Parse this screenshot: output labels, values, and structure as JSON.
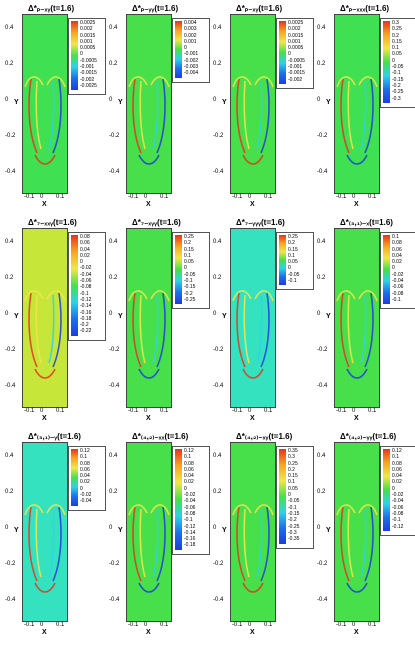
{
  "chart_data": [
    {
      "type": "heatmap",
      "title": "Δ*ₚ₋ₓᵧ(t=1.6)",
      "xlabel": "X",
      "ylabel": "Y",
      "xticks": [
        "-0.1",
        "0",
        "0.1"
      ],
      "yticks": [
        "0.4",
        "0.2",
        "0",
        "-0.2",
        "-0.4"
      ],
      "background": "#3fe052",
      "levels": [
        "0.0025",
        "0.002",
        "0.0015",
        "0.001",
        "0.0005",
        "0",
        "-0.0005",
        "-0.001",
        "-0.0015",
        "-0.002",
        "-0.0025"
      ]
    },
    {
      "type": "heatmap",
      "title": "Δ*ₚ₋ᵧᵧ(t=1.6)",
      "xlabel": "X",
      "ylabel": "Y",
      "xticks": [
        "-0.1",
        "0",
        "0.1"
      ],
      "yticks": [
        "0.4",
        "0.2",
        "0",
        "-0.2",
        "-0.4"
      ],
      "background": "#47e04a",
      "levels": [
        "0.004",
        "0.003",
        "0.002",
        "0.001",
        "0",
        "-0.001",
        "-0.002",
        "-0.003",
        "-0.004"
      ]
    },
    {
      "type": "heatmap",
      "title": "Δ*ₚ₋ₓᵧ(t=1.6)",
      "xlabel": "X",
      "ylabel": "Y",
      "xticks": [
        "-0.1",
        "0",
        "0.1"
      ],
      "yticks": [
        "0.4",
        "0.2",
        "0",
        "-0.2",
        "-0.4"
      ],
      "background": "#47e04a",
      "levels": [
        "0.0025",
        "0.002",
        "0.0015",
        "0.001",
        "0.0005",
        "0",
        "-0.0005",
        "-0.001",
        "-0.0015",
        "-0.002"
      ]
    },
    {
      "type": "heatmap",
      "title": "Δ*ₚ₋ₓₓₓ(t=1.6)",
      "xlabel": "X",
      "ylabel": "Y",
      "xticks": [
        "-0.1",
        "0",
        "0.1"
      ],
      "yticks": [
        "0.4",
        "0.2",
        "0",
        "-0.2",
        "-0.4"
      ],
      "background": "#3fe052",
      "levels": [
        "0.3",
        "0.25",
        "0.2",
        "0.15",
        "0.1",
        "0.05",
        "0",
        "-0.05",
        "-0.1",
        "-0.15",
        "-0.2",
        "-0.25",
        "-0.3"
      ]
    },
    {
      "type": "heatmap",
      "title": "Δ*₇₋ₓₓᵧ(t=1.6)",
      "xlabel": "X",
      "ylabel": "Y",
      "xticks": [
        "-0.1",
        "0",
        "0.1"
      ],
      "yticks": [
        "0.4",
        "0.2",
        "0",
        "-0.2",
        "-0.4"
      ],
      "background": "#c6e63a",
      "levels": [
        "0.08",
        "0.06",
        "0.04",
        "0.02",
        "0",
        "-0.02",
        "-0.04",
        "-0.06",
        "-0.08",
        "-0.1",
        "-0.12",
        "-0.14",
        "-0.16",
        "-0.18",
        "-0.2",
        "-0.22"
      ]
    },
    {
      "type": "heatmap",
      "title": "Δ*₇₋ₓᵧᵧ(t=1.6)",
      "xlabel": "X",
      "ylabel": "Y",
      "xticks": [
        "-0.1",
        "0",
        "0.1"
      ],
      "yticks": [
        "0.4",
        "0.2",
        "0",
        "-0.2",
        "-0.4"
      ],
      "background": "#47e04a",
      "levels": [
        "0.25",
        "0.2",
        "0.15",
        "0.1",
        "0.05",
        "0",
        "-0.05",
        "-0.1",
        "-0.15",
        "-0.2",
        "-0.25"
      ]
    },
    {
      "type": "heatmap",
      "title": "Δ*₇₋ᵧᵧᵧ(t=1.6)",
      "xlabel": "X",
      "ylabel": "Y",
      "xticks": [
        "-0.1",
        "0",
        "0.1"
      ],
      "yticks": [
        "0.4",
        "0.2",
        "0",
        "-0.2",
        "-0.4"
      ],
      "background": "#35e2c0",
      "levels": [
        "0.25",
        "0.2",
        "0.15",
        "0.1",
        "0.05",
        "0",
        "-0.05",
        "-0.1"
      ]
    },
    {
      "type": "heatmap",
      "title": "Δ*₍₃,₁₎₋ₓ(t=1.6)",
      "xlabel": "X",
      "ylabel": "Y",
      "xticks": [
        "-0.1",
        "0",
        "0.1"
      ],
      "yticks": [
        "0.4",
        "0.2",
        "0",
        "-0.2",
        "-0.4"
      ],
      "background": "#47e04a",
      "levels": [
        "0.1",
        "0.08",
        "0.06",
        "0.04",
        "0.02",
        "0",
        "-0.02",
        "-0.04",
        "-0.06",
        "-0.08",
        "-0.1"
      ]
    },
    {
      "type": "heatmap",
      "title": "Δ*₍₃,₁₎₋ᵧ(t=1.6)",
      "xlabel": "X",
      "ylabel": "Y",
      "xticks": [
        "-0.1",
        "0",
        "0.1"
      ],
      "yticks": [
        "0.4",
        "0.2",
        "0",
        "-0.2",
        "-0.4"
      ],
      "background": "#35e2c0",
      "levels": [
        "0.12",
        "0.1",
        "0.08",
        "0.06",
        "0.04",
        "0.02",
        "0",
        "-0.02",
        "-0.04"
      ]
    },
    {
      "type": "heatmap",
      "title": "Δ*₍₄,₂₎₋ₓₓ(t=1.6)",
      "xlabel": "X",
      "ylabel": "Y",
      "xticks": [
        "-0.1",
        "0",
        "0.1"
      ],
      "yticks": [
        "0.4",
        "0.2",
        "0",
        "-0.2",
        "-0.4"
      ],
      "background": "#47e04a",
      "levels": [
        "0.12",
        "0.1",
        "0.08",
        "0.06",
        "0.04",
        "0.02",
        "0",
        "-0.02",
        "-0.04",
        "-0.06",
        "-0.08",
        "-0.1",
        "-0.12",
        "-0.14",
        "-0.16",
        "-0.18"
      ]
    },
    {
      "type": "heatmap",
      "title": "Δ*₍₄,₂₎₋ₓᵧ(t=1.6)",
      "xlabel": "X",
      "ylabel": "Y",
      "xticks": [
        "-0.1",
        "0",
        "0.1"
      ],
      "yticks": [
        "0.4",
        "0.2",
        "0",
        "-0.2",
        "-0.4"
      ],
      "background": "#47e04a",
      "levels": [
        "0.35",
        "0.3",
        "0.25",
        "0.2",
        "0.15",
        "0.1",
        "0.05",
        "0",
        "-0.05",
        "-0.1",
        "-0.15",
        "-0.2",
        "-0.25",
        "-0.3",
        "-0.35"
      ]
    },
    {
      "type": "heatmap",
      "title": "Δ*₍₄,₂₎₋ᵧᵧ(t=1.6)",
      "xlabel": "X",
      "ylabel": "Y",
      "xticks": [
        "-0.1",
        "0",
        "0.1"
      ],
      "yticks": [
        "0.4",
        "0.2",
        "0",
        "-0.2",
        "-0.4"
      ],
      "background": "#47e04a",
      "levels": [
        "0.12",
        "0.1",
        "0.08",
        "0.06",
        "0.04",
        "0.02",
        "0",
        "-0.02",
        "-0.04",
        "-0.06",
        "-0.08",
        "-0.1",
        "-0.12"
      ]
    }
  ]
}
